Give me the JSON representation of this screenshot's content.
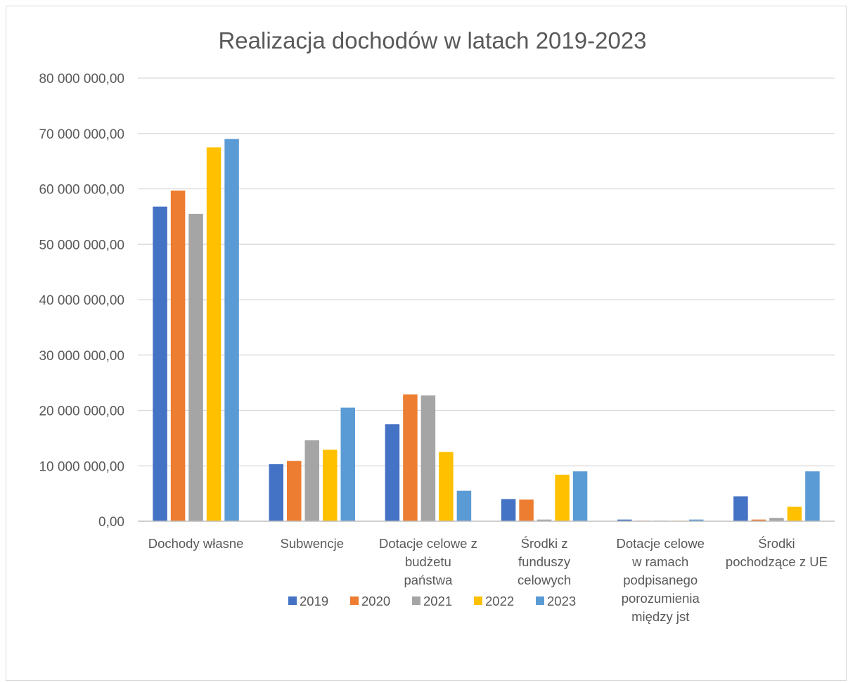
{
  "chart_data": {
    "type": "bar",
    "title": "Realizacja dochodów w latach 2019-2023",
    "xlabel": "",
    "ylabel": "",
    "ylim": [
      0,
      80000000
    ],
    "y_ticks": [
      0,
      10000000,
      20000000,
      30000000,
      40000000,
      50000000,
      60000000,
      70000000,
      80000000
    ],
    "y_tick_labels": [
      "0,00",
      "10 000 000,00",
      "20 000 000,00",
      "30 000 000,00",
      "40 000 000,00",
      "50 000 000,00",
      "60 000 000,00",
      "70 000 000,00",
      "80 000 000,00"
    ],
    "grid": true,
    "legend_position": "bottom",
    "categories": [
      [
        "Dochody własne"
      ],
      [
        "Subwencje"
      ],
      [
        "Dotacje celowe z",
        "budżetu",
        "państwa"
      ],
      [
        "Środki z",
        "funduszy",
        "celowych"
      ],
      [
        "Dotacje celowe",
        "w ramach",
        "podpisanego",
        "porozumienia",
        "między jst"
      ],
      [
        "Środki",
        "pochodzące z UE"
      ]
    ],
    "series": [
      {
        "name": "2019",
        "color": "#4472C4",
        "values": [
          56800000,
          10300000,
          17500000,
          4000000,
          300000,
          4500000
        ]
      },
      {
        "name": "2020",
        "color": "#ED7D31",
        "values": [
          59700000,
          10900000,
          22900000,
          3900000,
          100000,
          300000
        ]
      },
      {
        "name": "2021",
        "color": "#A5A5A5",
        "values": [
          55500000,
          14600000,
          22700000,
          300000,
          100000,
          600000
        ]
      },
      {
        "name": "2022",
        "color": "#FFC000",
        "values": [
          67500000,
          12900000,
          12500000,
          8400000,
          100000,
          2600000
        ]
      },
      {
        "name": "2023",
        "color": "#5B9BD5",
        "values": [
          69000000,
          20500000,
          5500000,
          9000000,
          300000,
          9000000
        ]
      }
    ]
  }
}
